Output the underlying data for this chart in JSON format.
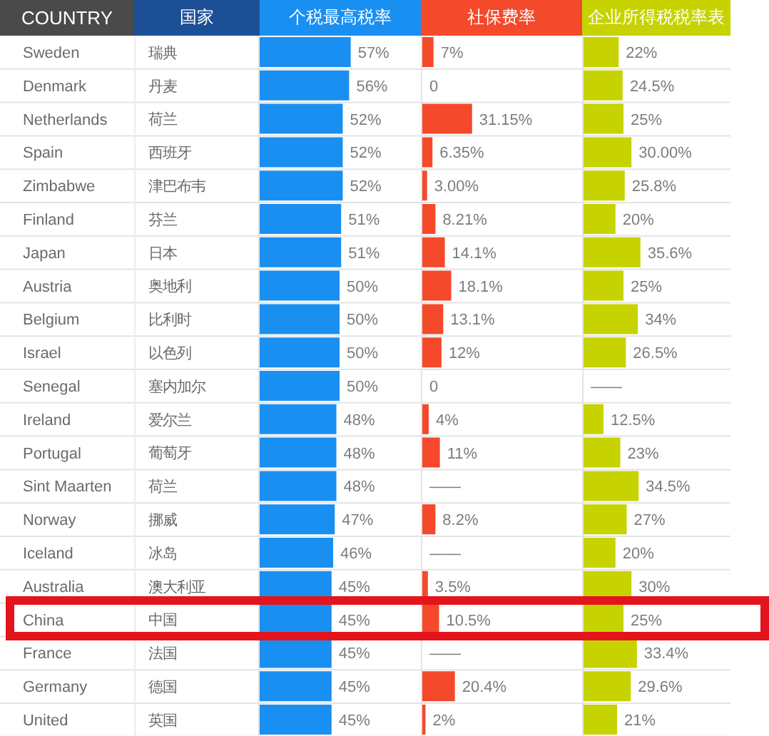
{
  "chart_data": [
    {
      "type": "bar",
      "orientation": "horizontal",
      "title": "个税最高税率",
      "ylabel": "COUNTRY",
      "y2label": "国家",
      "categories": [
        "Sweden",
        "Denmark",
        "Netherlands",
        "Spain",
        "Zimbabwe",
        "Finland",
        "Japan",
        "Austria",
        "Belgium",
        "Israel",
        "Senegal",
        "Ireland",
        "Portugal",
        "Sint Maarten",
        "Norway",
        "Iceland",
        "Australia",
        "China",
        "France",
        "Germany",
        "United"
      ],
      "y2_categories": [
        "瑞典",
        "丹麦",
        "荷兰",
        "西班牙",
        "津巴布韦",
        "芬兰",
        "日本",
        "奥地利",
        "比利时",
        "以色列",
        "塞内加尔",
        "爱尔兰",
        "葡萄牙",
        "荷兰",
        "挪威",
        "冰岛",
        "澳大利亚",
        "中国",
        "法国",
        "德国",
        "英国"
      ],
      "values": [
        57,
        56,
        52,
        52,
        52,
        51,
        51,
        50,
        50,
        50,
        50,
        48,
        48,
        48,
        47,
        46,
        45,
        45,
        45,
        45,
        45
      ],
      "value_labels": [
        "57%",
        "56%",
        "52%",
        "52%",
        "52%",
        "51%",
        "51%",
        "50%",
        "50%",
        "50%",
        "50%",
        "48%",
        "48%",
        "48%",
        "47%",
        "46%",
        "45%",
        "45%",
        "45%",
        "45%",
        "45%"
      ],
      "color": "#1a8ff2",
      "tick_labels": "y",
      "grid": "y"
    },
    {
      "type": "bar",
      "orientation": "horizontal",
      "title": "社保费率",
      "categories": [
        null,
        null,
        null,
        null,
        null,
        null,
        null,
        null,
        null,
        null,
        null,
        null,
        null,
        null,
        null,
        null,
        null,
        null,
        null,
        null,
        null
      ],
      "values": [
        7,
        0,
        31.15,
        6.35,
        3,
        8.21,
        14.1,
        18.1,
        13.1,
        12,
        0,
        4,
        11,
        null,
        8.2,
        null,
        3.5,
        10.5,
        null,
        20.4,
        2
      ],
      "value_labels": [
        "7%",
        "0",
        "31.15%",
        "6.35%",
        "3.00%",
        "8.21%",
        "14.1%",
        "18.1%",
        "13.1%",
        "12%",
        "0",
        "4%",
        "11%",
        "——",
        "8.2%",
        "——",
        "3.5%",
        "10.5%",
        "——",
        "20.4%",
        "2%"
      ],
      "color": "#f4492b",
      "tick_labels": false,
      "grid": "y"
    },
    {
      "type": "bar",
      "orientation": "horizontal",
      "title": "企业所得税税率表",
      "categories": [
        null,
        null,
        null,
        null,
        null,
        null,
        null,
        null,
        null,
        null,
        null,
        null,
        null,
        null,
        null,
        null,
        null,
        null,
        null,
        null,
        null
      ],
      "values": [
        22,
        24.5,
        25,
        30,
        25.8,
        20,
        35.6,
        25,
        34,
        26.5,
        null,
        12.5,
        23,
        34.5,
        27,
        20,
        30,
        25,
        33.4,
        29.6,
        21
      ],
      "value_labels": [
        "22%",
        "24.5%",
        "25%",
        "30.00%",
        "25.8%",
        "20%",
        "35.6%",
        "25%",
        "34%",
        "26.5%",
        "——",
        "12.5%",
        "23%",
        "34.5%",
        "27%",
        "20%",
        "30%",
        "25%",
        "33.4%",
        "29.6%",
        "21%"
      ],
      "color": "#c6d300",
      "tick_labels": false,
      "grid": "y"
    }
  ]
}
